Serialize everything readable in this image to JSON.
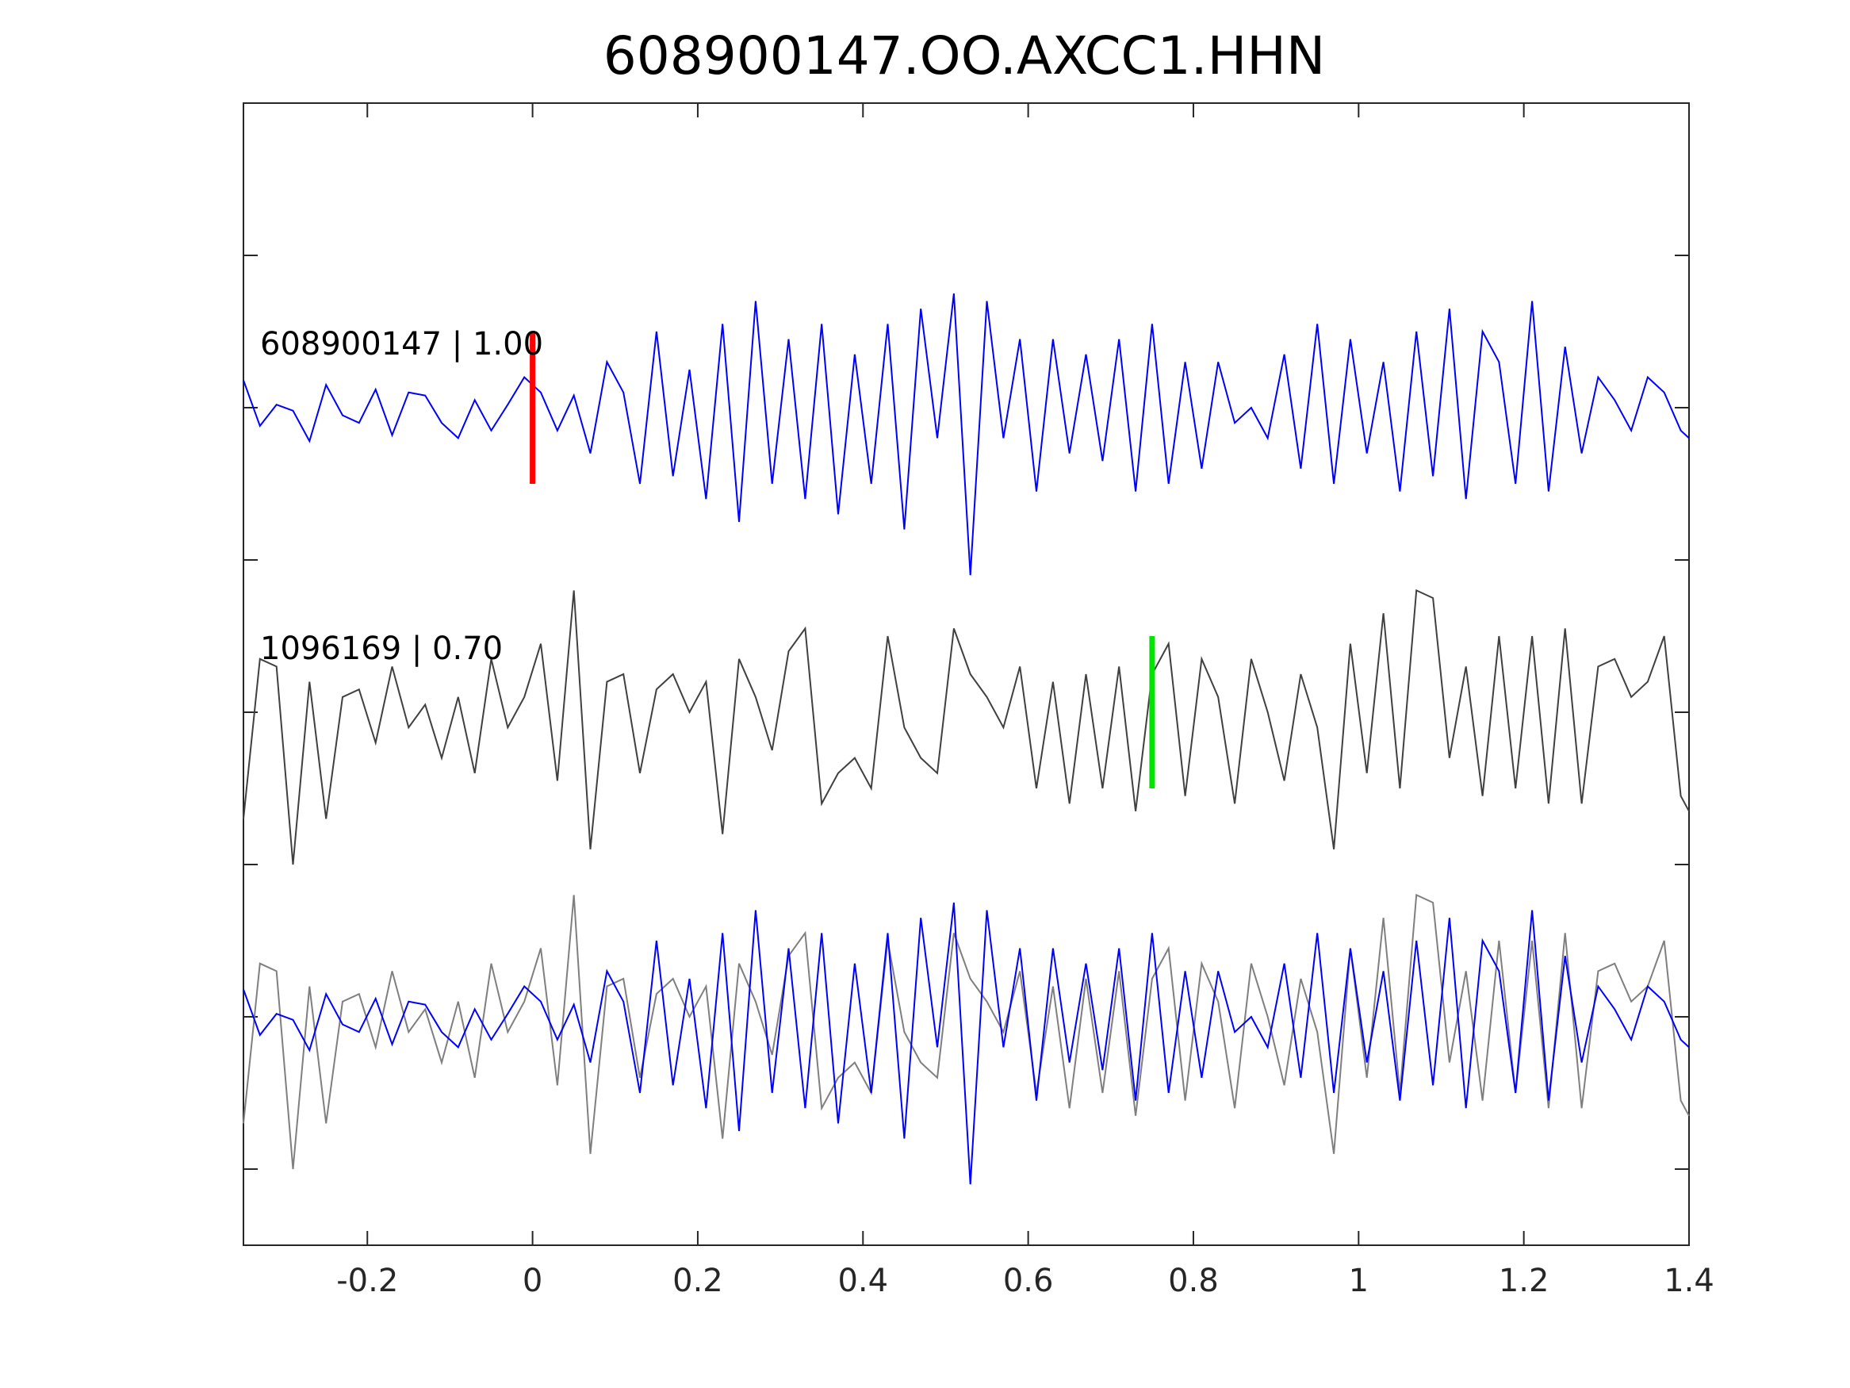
{
  "chart_data": {
    "type": "line",
    "title": "608900147.OO.AXCC1.HHN",
    "xlabel": "",
    "ylabel": "",
    "xlim": [
      -0.35,
      1.4
    ],
    "x_ticks": [
      "-0.2",
      "0",
      "0.2",
      "0.4",
      "0.6",
      "0.8",
      "1",
      "1.2",
      "1.4"
    ],
    "x_tick_values": [
      -0.2,
      0,
      0.2,
      0.4,
      0.6,
      0.8,
      1,
      1.2,
      1.4
    ],
    "ylim": [
      -3.5,
      4
    ],
    "y_tick_values": [
      -3,
      -2,
      -1,
      0,
      1,
      2,
      3
    ],
    "y_tick_labels_visible": false,
    "grid": false,
    "colors": {
      "master": "#0000ff",
      "detected": "#404040",
      "detected_overlay": "#7f7f7f",
      "pick_master": "#ff0000",
      "pick_detected": "#00e600",
      "axes": "#262626"
    },
    "traces": [
      {
        "label": "608900147 | 1.00",
        "offset": 2,
        "color": "#0000ff",
        "x": [
          -0.35,
          -0.33,
          -0.31,
          -0.29,
          -0.27,
          -0.25,
          -0.23,
          -0.21,
          -0.19,
          -0.17,
          -0.15,
          -0.13,
          -0.11,
          -0.09,
          -0.07,
          -0.05,
          -0.03,
          -0.01,
          0.01,
          0.03,
          0.05,
          0.07,
          0.09,
          0.11,
          0.13,
          0.15,
          0.17,
          0.19,
          0.21,
          0.23,
          0.25,
          0.27,
          0.29,
          0.31,
          0.33,
          0.35,
          0.37,
          0.39,
          0.41,
          0.43,
          0.45,
          0.47,
          0.49,
          0.51,
          0.53,
          0.55,
          0.57,
          0.59,
          0.61,
          0.63,
          0.65,
          0.67,
          0.69,
          0.71,
          0.73,
          0.75,
          0.77,
          0.79,
          0.81,
          0.83,
          0.85,
          0.87,
          0.89,
          0.91,
          0.93,
          0.95,
          0.97,
          0.99,
          1.01,
          1.03,
          1.05,
          1.07,
          1.09,
          1.11,
          1.13,
          1.15,
          1.17,
          1.19,
          1.21,
          1.23,
          1.25,
          1.27,
          1.29,
          1.31,
          1.33,
          1.35,
          1.37,
          1.39,
          1.4
        ],
        "y": [
          0.18,
          -0.12,
          0.02,
          -0.02,
          -0.22,
          0.15,
          -0.05,
          -0.1,
          0.12,
          -0.18,
          0.1,
          0.08,
          -0.1,
          -0.2,
          0.05,
          -0.15,
          0.02,
          0.2,
          0.1,
          -0.15,
          0.08,
          -0.3,
          0.3,
          0.1,
          -0.5,
          0.5,
          -0.45,
          0.25,
          -0.6,
          0.55,
          -0.75,
          0.7,
          -0.5,
          0.45,
          -0.6,
          0.55,
          -0.7,
          0.35,
          -0.5,
          0.55,
          -0.8,
          0.65,
          -0.2,
          0.75,
          -1.1,
          0.7,
          -0.2,
          0.45,
          -0.55,
          0.45,
          -0.3,
          0.35,
          -0.35,
          0.45,
          -0.55,
          0.55,
          -0.5,
          0.3,
          -0.4,
          0.3,
          -0.1,
          0.0,
          -0.2,
          0.35,
          -0.4,
          0.55,
          -0.5,
          0.45,
          -0.3,
          0.3,
          -0.55,
          0.5,
          -0.45,
          0.65,
          -0.6,
          0.5,
          0.3,
          -0.5,
          0.7,
          -0.55,
          0.4,
          -0.3,
          0.2,
          0.05,
          -0.15,
          0.2,
          0.1,
          -0.15,
          -0.2
        ],
        "pick": 0.0
      },
      {
        "label": "1096169 | 0.70",
        "offset": 0,
        "color": "#404040",
        "x": [
          -0.35,
          -0.33,
          -0.31,
          -0.29,
          -0.27,
          -0.25,
          -0.23,
          -0.21,
          -0.19,
          -0.17,
          -0.15,
          -0.13,
          -0.11,
          -0.09,
          -0.07,
          -0.05,
          -0.03,
          -0.01,
          0.01,
          0.03,
          0.05,
          0.07,
          0.09,
          0.11,
          0.13,
          0.15,
          0.17,
          0.19,
          0.21,
          0.23,
          0.25,
          0.27,
          0.29,
          0.31,
          0.33,
          0.35,
          0.37,
          0.39,
          0.41,
          0.43,
          0.45,
          0.47,
          0.49,
          0.51,
          0.53,
          0.55,
          0.57,
          0.59,
          0.61,
          0.63,
          0.65,
          0.67,
          0.69,
          0.71,
          0.73,
          0.75,
          0.77,
          0.79,
          0.81,
          0.83,
          0.85,
          0.87,
          0.89,
          0.91,
          0.93,
          0.95,
          0.97,
          0.99,
          1.01,
          1.03,
          1.05,
          1.07,
          1.09,
          1.11,
          1.13,
          1.15,
          1.17,
          1.19,
          1.21,
          1.23,
          1.25,
          1.27,
          1.29,
          1.31,
          1.33,
          1.35,
          1.37,
          1.39,
          1.4
        ],
        "y": [
          -0.7,
          0.35,
          0.3,
          -1.0,
          0.2,
          -0.7,
          0.1,
          0.15,
          -0.2,
          0.3,
          -0.1,
          0.05,
          -0.3,
          0.1,
          -0.4,
          0.35,
          -0.1,
          0.1,
          0.45,
          -0.45,
          0.8,
          -0.9,
          0.2,
          0.25,
          -0.4,
          0.15,
          0.25,
          0.0,
          0.2,
          -0.8,
          0.35,
          0.1,
          -0.25,
          0.4,
          0.55,
          -0.6,
          -0.4,
          -0.3,
          -0.5,
          0.5,
          -0.1,
          -0.3,
          -0.4,
          0.55,
          0.25,
          0.1,
          -0.1,
          0.3,
          -0.5,
          0.2,
          -0.6,
          0.25,
          -0.5,
          0.3,
          -0.65,
          0.25,
          0.45,
          -0.55,
          0.35,
          0.1,
          -0.6,
          0.35,
          0.0,
          -0.45,
          0.25,
          -0.1,
          -0.9,
          0.45,
          -0.4,
          0.65,
          -0.5,
          0.8,
          0.75,
          -0.3,
          0.3,
          -0.55,
          0.5,
          -0.5,
          0.5,
          -0.6,
          0.55,
          -0.6,
          0.3,
          0.35,
          0.1,
          0.2,
          0.5,
          -0.55,
          -0.65
        ],
        "pick": 0.75
      },
      {
        "label": "",
        "offset": -2,
        "color": "#7f7f7f",
        "overlay_of": [
          0,
          1
        ]
      }
    ]
  }
}
